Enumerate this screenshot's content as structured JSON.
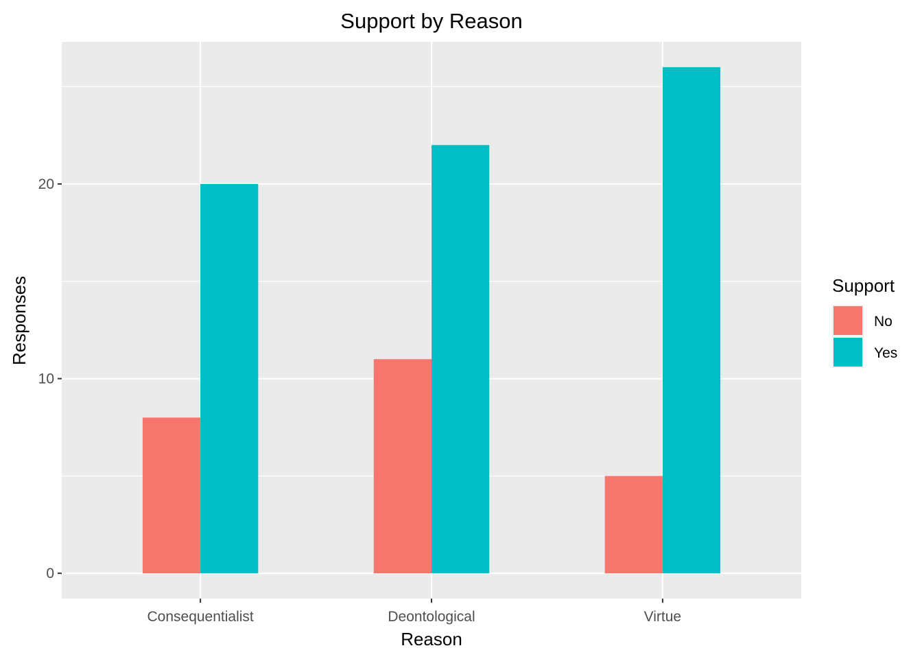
{
  "chart_data": {
    "type": "bar",
    "title": "Support by Reason",
    "xlabel": "Reason",
    "ylabel": "Responses",
    "categories": [
      "Consequentialist",
      "Deontological",
      "Virtue"
    ],
    "series": [
      {
        "name": "No",
        "values": [
          8,
          11,
          5
        ],
        "color": "#f8766d"
      },
      {
        "name": "Yes",
        "values": [
          20,
          22,
          26
        ],
        "color": "#00bfc4"
      }
    ],
    "ylim": [
      -1.3,
      27.3
    ],
    "yticks": [
      0,
      10,
      20
    ],
    "grid": true,
    "legend": {
      "title": "Support",
      "position": "right",
      "entries": [
        "No",
        "Yes"
      ]
    },
    "panel_background": "#ebebeb",
    "grid_color": "#ffffff"
  }
}
